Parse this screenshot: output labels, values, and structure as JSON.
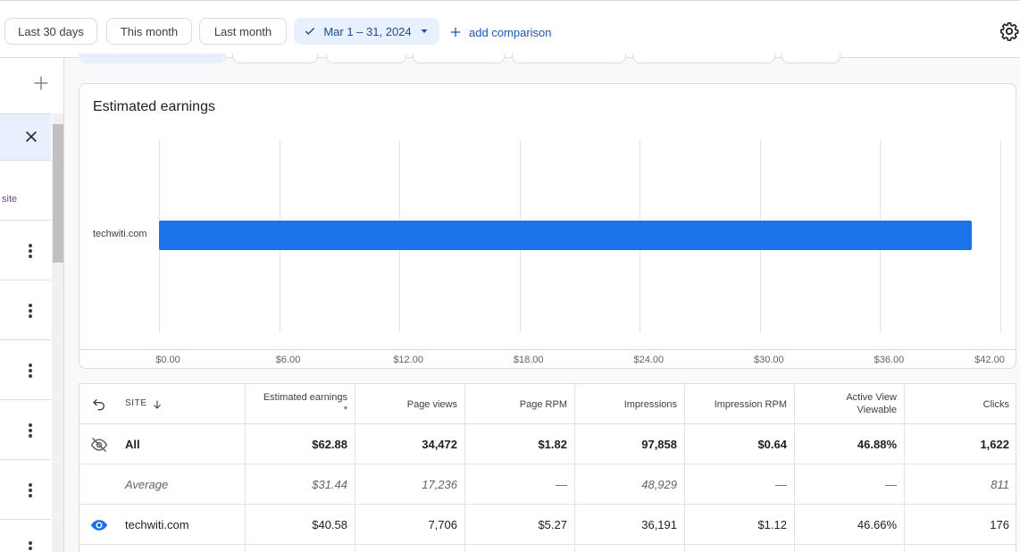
{
  "toolbar": {
    "chips": [
      "Last 30 days",
      "This month",
      "Last month"
    ],
    "selected_range": "Mar 1 – 31, 2024",
    "add_comparison": "add comparison"
  },
  "sidebar": {
    "site_label": "site"
  },
  "chart": {
    "title": "Estimated earnings",
    "colors": {
      "bar": "#1a73e8"
    }
  },
  "chart_data": {
    "type": "bar",
    "orientation": "horizontal",
    "title": "Estimated earnings",
    "categories": [
      "techwiti.com"
    ],
    "values": [
      40.58
    ],
    "x_ticks": [
      "$0.00",
      "$6.00",
      "$12.00",
      "$18.00",
      "$24.00",
      "$30.00",
      "$36.00",
      "$42.00"
    ],
    "xlim": [
      0,
      42
    ],
    "grid": true
  },
  "table": {
    "headers": {
      "site": "SITE",
      "estimated_earnings": "Estimated earnings",
      "estimated_earnings_note": "*",
      "page_views": "Page views",
      "page_rpm": "Page RPM",
      "impressions": "Impressions",
      "impression_rpm": "Impression RPM",
      "active_view_1": "Active View",
      "active_view_2": "Viewable",
      "clicks": "Clicks"
    },
    "rows": [
      {
        "site": "All",
        "earnings": "$62.88",
        "page_views": "34,472",
        "page_rpm": "$1.82",
        "impressions": "97,858",
        "impression_rpm": "$0.64",
        "active_view": "46.88%",
        "clicks": "1,622"
      },
      {
        "site": "Average",
        "earnings": "$31.44",
        "page_views": "17,236",
        "page_rpm": "—",
        "impressions": "48,929",
        "impression_rpm": "—",
        "active_view": "—",
        "clicks": "811"
      },
      {
        "site": "techwiti.com",
        "earnings": "$40.58",
        "page_views": "7,706",
        "page_rpm": "$5.27",
        "impressions": "36,191",
        "impression_rpm": "$1.12",
        "active_view": "46.66%",
        "clicks": "176"
      }
    ]
  }
}
